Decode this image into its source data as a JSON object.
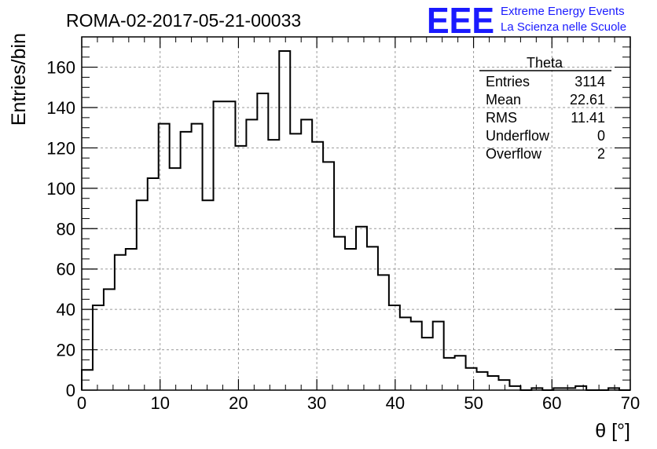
{
  "chart_data": {
    "type": "bar",
    "style": "step-histogram",
    "title": "ROMA-02-2017-05-21-00033",
    "xlabel": "θ [°]",
    "ylabel": "Entries/bin",
    "xlim": [
      0,
      70
    ],
    "ylim": [
      0,
      175
    ],
    "grid": true,
    "bin_width": 1.4,
    "x_ticks": [
      0,
      10,
      20,
      30,
      40,
      50,
      60,
      70
    ],
    "y_ticks": [
      0,
      20,
      40,
      60,
      80,
      100,
      120,
      140,
      160
    ],
    "values": [
      10,
      42,
      50,
      67,
      70,
      94,
      105,
      132,
      110,
      128,
      132,
      94,
      143,
      143,
      121,
      134,
      147,
      124,
      168,
      127,
      134,
      123,
      113,
      76,
      70,
      81,
      71,
      57,
      42,
      36,
      34,
      26,
      34,
      16,
      17,
      11,
      9,
      7,
      5,
      2,
      0,
      1,
      0,
      1,
      1,
      2,
      0,
      0,
      1,
      0
    ],
    "stats": {
      "name": "Theta",
      "rows": [
        {
          "label": "Entries",
          "value": "3114"
        },
        {
          "label": "Mean",
          "value": "22.61"
        },
        {
          "label": "RMS",
          "value": "11.41"
        },
        {
          "label": "Underflow",
          "value": "0"
        },
        {
          "label": "Overflow",
          "value": "2"
        }
      ]
    }
  },
  "logo": {
    "mark": "EEE",
    "line1": "Extreme Energy Events",
    "line2": "La Scienza nelle Scuole",
    "color": "#1a1aff"
  },
  "colors": {
    "line": "#000000",
    "grid": "#9a9a9a",
    "background": "#ffffff"
  }
}
